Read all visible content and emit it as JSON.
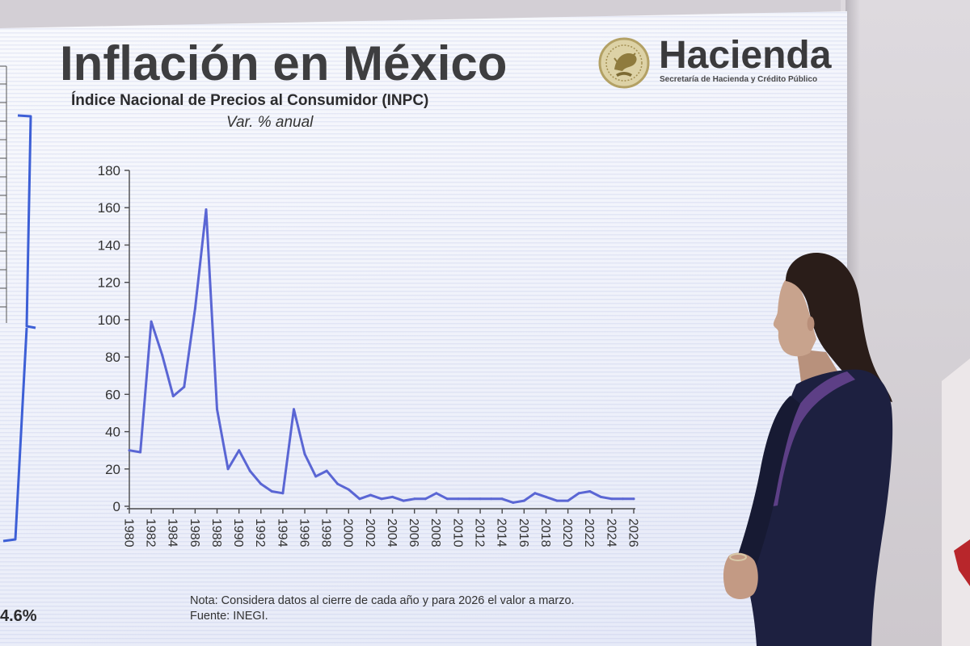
{
  "chart_data": {
    "type": "line",
    "title": "Inflación en México",
    "subtitle": "Índice Nacional de Precios al Consumidor (INPC)",
    "units": "Var. % anual",
    "x": [
      1980,
      1981,
      1982,
      1983,
      1984,
      1985,
      1986,
      1987,
      1988,
      1989,
      1990,
      1991,
      1992,
      1993,
      1994,
      1995,
      1996,
      1997,
      1998,
      1999,
      2000,
      2001,
      2002,
      2003,
      2004,
      2005,
      2006,
      2007,
      2008,
      2009,
      2010,
      2011,
      2012,
      2013,
      2014,
      2015,
      2016,
      2017,
      2018,
      2019,
      2020,
      2021,
      2022,
      2023,
      2024,
      2025,
      2026
    ],
    "series": [
      {
        "values": [
          30,
          29,
          99,
          81,
          59,
          64,
          106,
          159,
          52,
          20,
          30,
          19,
          12,
          8,
          7,
          52,
          28,
          16,
          19,
          12,
          9,
          4,
          6,
          4,
          5,
          3,
          4,
          4,
          7,
          4,
          4,
          4,
          4,
          4,
          4,
          2,
          3,
          7,
          5,
          3,
          3,
          7,
          8,
          5,
          4,
          4,
          4
        ]
      }
    ],
    "xlim": [
      1980,
      2026
    ],
    "ylim": [
      0,
      180
    ],
    "xticks": [
      1980,
      1982,
      1984,
      1986,
      1988,
      1990,
      1992,
      1994,
      1996,
      1998,
      2000,
      2002,
      2004,
      2006,
      2008,
      2010,
      2012,
      2014,
      2016,
      2018,
      2020,
      2022,
      2024,
      2026
    ],
    "yticks": [
      0,
      20,
      40,
      60,
      80,
      100,
      120,
      140,
      160,
      180
    ],
    "grid": false
  },
  "slide": {
    "note": "Nota: Considera datos al cierre de cada año y para 2026 el valor a marzo.",
    "source": "Fuente: INEGI."
  },
  "logo": {
    "icon": "coat-of-arms-seal-icon",
    "name": "Hacienda",
    "tagline": "Secretaría de Hacienda y Crédito Público"
  },
  "side_panel": {
    "value": "4.6%"
  },
  "colors": {
    "series_line": "#5a66d4",
    "bracket": "#3d5fd6",
    "seal": "#b3a165"
  }
}
